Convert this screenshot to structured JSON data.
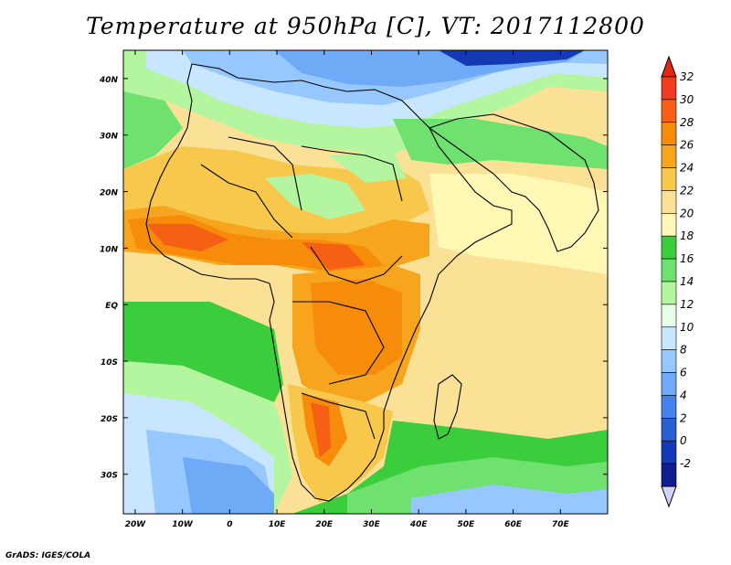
{
  "title": "Temperature at 950hPa [C], VT: 2017112800",
  "credit": "GrADS: IGES/COLA",
  "lat_labels": [
    "40N",
    "30N",
    "20N",
    "10N",
    "EQ",
    "10S",
    "20S",
    "30S"
  ],
  "lat_values": [
    40,
    30,
    20,
    10,
    0,
    -10,
    -20,
    -30
  ],
  "lon_labels": [
    "20W",
    "10W",
    "0",
    "10E",
    "20E",
    "30E",
    "40E",
    "50E",
    "60E",
    "70E"
  ],
  "lon_values": [
    -20,
    -10,
    0,
    10,
    20,
    30,
    40,
    50,
    60,
    70
  ],
  "extent": {
    "lon_min": -22.5,
    "lon_max": 80,
    "lat_min": -37,
    "lat_max": 45
  },
  "colorbar": {
    "labels": [
      "32",
      "30",
      "28",
      "26",
      "24",
      "22",
      "20",
      "18",
      "16",
      "14",
      "12",
      "10",
      "8",
      "6",
      "4",
      "2",
      "0",
      "-2"
    ],
    "levels": [
      32,
      30,
      28,
      26,
      24,
      22,
      20,
      18,
      16,
      14,
      12,
      10,
      8,
      6,
      4,
      2,
      0,
      -2
    ],
    "colors": [
      "#f03c1e",
      "#f56014",
      "#f78c0a",
      "#f7a51e",
      "#f7c84b",
      "#fae196",
      "#fff7b4",
      "#3ccd3c",
      "#6ee16e",
      "#b4f5a0",
      "#e6ffe6",
      "#c8e6ff",
      "#96c8ff",
      "#6eaaf5",
      "#4682eb",
      "#2860d2",
      "#1439b4",
      "#0f1e8c"
    ],
    "top_arrow_color": "#e02810",
    "bottom_arrow_color": "#d2d2fa"
  }
}
